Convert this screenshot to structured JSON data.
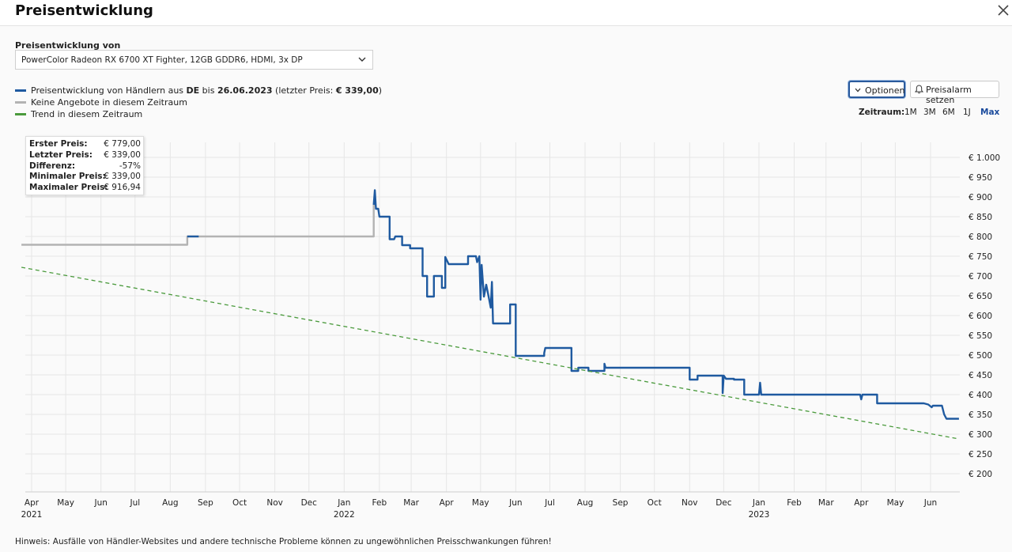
{
  "header": {
    "title": "Preisentwicklung",
    "close_icon": "close-icon"
  },
  "product_select": {
    "label": "Preisentwicklung von",
    "value": "PowerColor Radeon RX 6700 XT Fighter, 12GB GDDR6, HDMI, 3x DP"
  },
  "legend": {
    "line1_pre": "Preisentwicklung von Händlern aus ",
    "line1_country": "DE",
    "line1_mid": " bis ",
    "line1_date": "26.06.2023",
    "line1_post1": " (letzter Preis: ",
    "line1_price": "€ 339,00",
    "line1_post2": ")",
    "line2": "Keine Angebote in diesem Zeitraum",
    "line3": "Trend in diesem Zeitraum",
    "colors": {
      "price": "#1f5aa0",
      "none": "#b3b3b3",
      "trend": "#4a9a3c"
    }
  },
  "buttons": {
    "options": "Optionen",
    "alarm": "Preisalarm setzen"
  },
  "zeitraum": {
    "label": "Zeitraum:",
    "options": [
      "1M",
      "3M",
      "6M",
      "1J",
      "Max"
    ],
    "active": "Max"
  },
  "stats": [
    {
      "key": "Erster Preis:",
      "value": "€ 779,00"
    },
    {
      "key": "Letzter Preis:",
      "value": "€ 339,00"
    },
    {
      "key": "Differenz:",
      "value": "-57%"
    },
    {
      "key": "Minimaler Preis:",
      "value": "€ 339,00"
    },
    {
      "key": "Maximaler Preis:",
      "value": "€ 916,94"
    }
  ],
  "chart_data": {
    "type": "line",
    "xlim": [
      "2021-03-23",
      "2023-06-26"
    ],
    "ylim": [
      180,
      1020
    ],
    "yticks": [
      200,
      250,
      300,
      350,
      400,
      450,
      500,
      550,
      600,
      650,
      700,
      750,
      800,
      850,
      900,
      950,
      1000
    ],
    "ytick_labels": [
      "€ 200",
      "€ 250",
      "€ 300",
      "€ 350",
      "€ 400",
      "€ 450",
      "€ 500",
      "€ 550",
      "€ 600",
      "€ 650",
      "€ 700",
      "€ 750",
      "€ 800",
      "€ 850",
      "€ 900",
      "€ 950",
      "€ 1.000"
    ],
    "xticks": [
      {
        "date": "2021-04-01",
        "label": "Apr",
        "year": "2021"
      },
      {
        "date": "2021-05-01",
        "label": "May"
      },
      {
        "date": "2021-06-01",
        "label": "Jun"
      },
      {
        "date": "2021-07-01",
        "label": "Jul"
      },
      {
        "date": "2021-08-01",
        "label": "Aug"
      },
      {
        "date": "2021-09-01",
        "label": "Sep"
      },
      {
        "date": "2021-10-01",
        "label": "Oct"
      },
      {
        "date": "2021-11-01",
        "label": "Nov"
      },
      {
        "date": "2021-12-01",
        "label": "Dec"
      },
      {
        "date": "2022-01-01",
        "label": "Jan",
        "year": "2022"
      },
      {
        "date": "2022-02-01",
        "label": "Feb"
      },
      {
        "date": "2022-03-01",
        "label": "Mar"
      },
      {
        "date": "2022-04-01",
        "label": "Apr"
      },
      {
        "date": "2022-05-01",
        "label": "May"
      },
      {
        "date": "2022-06-01",
        "label": "Jun"
      },
      {
        "date": "2022-07-01",
        "label": "Jul"
      },
      {
        "date": "2022-08-01",
        "label": "Aug"
      },
      {
        "date": "2022-09-01",
        "label": "Sep"
      },
      {
        "date": "2022-10-01",
        "label": "Oct"
      },
      {
        "date": "2022-11-01",
        "label": "Nov"
      },
      {
        "date": "2022-12-01",
        "label": "Dec"
      },
      {
        "date": "2023-01-01",
        "label": "Jan",
        "year": "2023"
      },
      {
        "date": "2023-02-01",
        "label": "Feb"
      },
      {
        "date": "2023-03-01",
        "label": "Mar"
      },
      {
        "date": "2023-04-01",
        "label": "Apr"
      },
      {
        "date": "2023-05-01",
        "label": "May"
      },
      {
        "date": "2023-06-01",
        "label": "Jun"
      }
    ],
    "grid": true,
    "series": [
      {
        "name": "Keine Angebote in diesem Zeitraum",
        "color": "#b3b3b3",
        "step": true,
        "points": [
          [
            "2021-03-23",
            779
          ],
          [
            "2021-08-16",
            779
          ],
          [
            "2021-08-16",
            800
          ],
          [
            "2021-08-26",
            800
          ],
          [
            "2021-08-26",
            800
          ],
          [
            "2022-01-27",
            800
          ],
          [
            "2022-01-27",
            880
          ]
        ]
      },
      {
        "name": "Preisentwicklung von Händlern aus DE",
        "color": "#1f5aa0",
        "step": true,
        "points": [
          [
            "2021-08-16",
            800
          ],
          [
            "2021-08-26",
            800
          ]
        ]
      },
      {
        "name": "",
        "color": "#1f5aa0",
        "step": true,
        "points": [
          [
            "2022-01-27",
            880
          ],
          [
            "2022-01-28",
            917
          ],
          [
            "2022-01-29",
            870
          ],
          [
            "2022-01-31",
            870
          ],
          [
            "2022-02-01",
            850
          ],
          [
            "2022-02-10",
            850
          ],
          [
            "2022-02-10",
            793
          ],
          [
            "2022-02-14",
            793
          ],
          [
            "2022-02-15",
            800
          ],
          [
            "2022-02-21",
            800
          ],
          [
            "2022-02-21",
            778
          ],
          [
            "2022-02-28",
            778
          ],
          [
            "2022-02-28",
            770
          ],
          [
            "2022-03-11",
            770
          ],
          [
            "2022-03-11",
            700
          ],
          [
            "2022-03-15",
            700
          ],
          [
            "2022-03-15",
            648
          ],
          [
            "2022-03-21",
            648
          ],
          [
            "2022-03-21",
            700
          ],
          [
            "2022-03-28",
            700
          ],
          [
            "2022-03-28",
            670
          ],
          [
            "2022-03-31",
            670
          ],
          [
            "2022-03-31",
            748
          ],
          [
            "2022-04-03",
            730
          ],
          [
            "2022-04-20",
            730
          ],
          [
            "2022-04-20",
            750
          ],
          [
            "2022-04-27",
            750
          ],
          [
            "2022-04-28",
            735
          ],
          [
            "2022-04-30",
            750
          ],
          [
            "2022-05-01",
            640
          ],
          [
            "2022-05-02",
            728
          ],
          [
            "2022-05-04",
            648
          ],
          [
            "2022-05-06",
            678
          ],
          [
            "2022-05-08",
            650
          ],
          [
            "2022-05-10",
            620
          ],
          [
            "2022-05-11",
            685
          ],
          [
            "2022-05-12",
            580
          ],
          [
            "2022-05-27",
            580
          ],
          [
            "2022-05-27",
            628
          ],
          [
            "2022-06-01",
            628
          ],
          [
            "2022-06-01",
            498
          ],
          [
            "2022-06-18",
            498
          ],
          [
            "2022-06-26",
            498
          ],
          [
            "2022-06-26",
            505
          ],
          [
            "2022-06-27",
            518
          ],
          [
            "2022-07-20",
            518
          ],
          [
            "2022-07-20",
            460
          ],
          [
            "2022-07-26",
            460
          ],
          [
            "2022-07-26",
            468
          ],
          [
            "2022-08-04",
            468
          ],
          [
            "2022-08-04",
            460
          ],
          [
            "2022-08-18",
            460
          ],
          [
            "2022-08-18",
            478
          ],
          [
            "2022-08-19",
            468
          ],
          [
            "2022-08-20",
            468
          ],
          [
            "2022-11-01",
            468
          ],
          [
            "2022-11-01",
            438
          ],
          [
            "2022-11-08",
            438
          ],
          [
            "2022-11-08",
            448
          ],
          [
            "2022-11-30",
            448
          ],
          [
            "2022-11-30",
            404
          ],
          [
            "2022-12-01",
            448
          ],
          [
            "2022-12-03",
            440
          ],
          [
            "2022-12-10",
            440
          ],
          [
            "2022-12-10",
            438
          ],
          [
            "2022-12-19",
            438
          ],
          [
            "2022-12-19",
            400
          ],
          [
            "2023-01-01",
            400
          ],
          [
            "2023-01-02",
            430
          ],
          [
            "2023-01-03",
            400
          ],
          [
            "2023-03-31",
            400
          ],
          [
            "2023-04-01",
            388
          ],
          [
            "2023-04-02",
            400
          ],
          [
            "2023-04-15",
            400
          ],
          [
            "2023-04-15",
            378
          ],
          [
            "2023-05-26",
            378
          ],
          [
            "2023-05-30",
            375
          ],
          [
            "2023-06-02",
            368
          ],
          [
            "2023-06-03",
            372
          ],
          [
            "2023-06-11",
            372
          ],
          [
            "2023-06-13",
            350
          ],
          [
            "2023-06-15",
            339
          ],
          [
            "2023-06-26",
            339
          ]
        ]
      },
      {
        "name": "Trend in diesem Zeitraum",
        "color": "#4a9a3c",
        "dashed": true,
        "points": [
          [
            "2021-03-23",
            722
          ],
          [
            "2023-06-26",
            288
          ]
        ]
      }
    ]
  },
  "hint": "Hinweis: Ausfälle von Händler-Websites und andere technische Probleme können zu ungewöhnlichen Preisschwankungen führen!"
}
